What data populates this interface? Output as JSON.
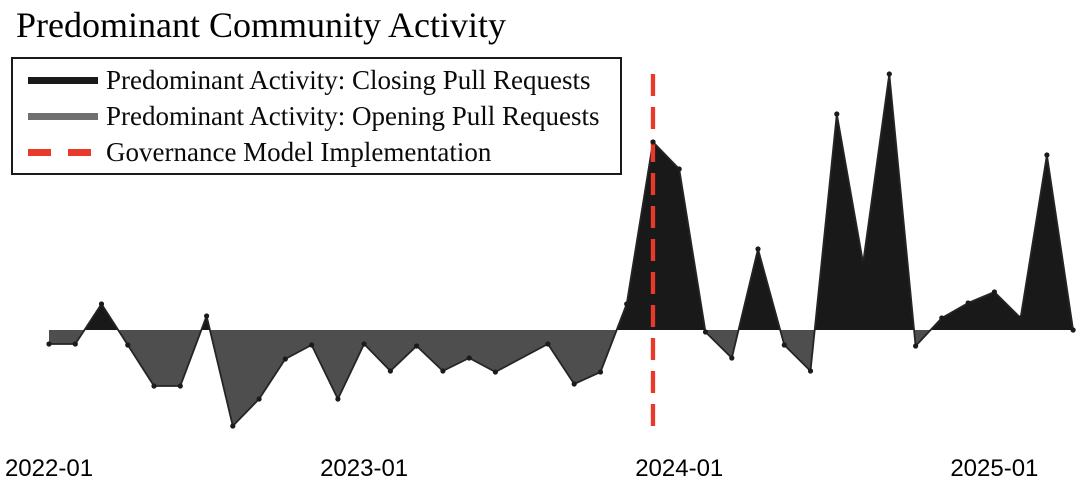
{
  "chart_data": {
    "type": "area",
    "title": "Predominant Community Activity",
    "x_unit": "month",
    "grid": false,
    "legend_position": "upper left",
    "x_range": [
      "2022-01",
      "2025-04"
    ],
    "value_range": [
      -98,
      258
    ],
    "baseline": 0,
    "series_semantics": {
      "positive": "Predominant Activity: Closing Pull Requests (black area above baseline)",
      "negative": "Predominant Activity: Opening Pull Requests (gray area below baseline)"
    },
    "months": [
      "2022-01",
      "2022-02",
      "2022-03",
      "2022-04",
      "2022-05",
      "2022-06",
      "2022-07",
      "2022-08",
      "2022-09",
      "2022-10",
      "2022-11",
      "2022-12",
      "2023-01",
      "2023-02",
      "2023-03",
      "2023-04",
      "2023-05",
      "2023-06",
      "2023-07",
      "2023-08",
      "2023-09",
      "2023-10",
      "2023-11",
      "2023-12",
      "2024-01",
      "2024-02",
      "2024-03",
      "2024-04",
      "2024-05",
      "2024-06",
      "2024-07",
      "2024-08",
      "2024-09",
      "2024-10",
      "2024-11",
      "2024-12",
      "2025-01",
      "2025-02",
      "2025-03",
      "2025-04"
    ],
    "values": [
      -14,
      -14,
      26,
      -15,
      -56,
      -56,
      14,
      -96,
      -69,
      -29,
      -15,
      -69,
      -14,
      -41,
      -16,
      -41,
      -28,
      -42,
      null,
      -14,
      -54,
      -42,
      26,
      188,
      161,
      -2,
      -28,
      81,
      -15,
      -41,
      216,
      67,
      256,
      -16,
      12,
      27,
      38,
      12,
      175,
      0
    ],
    "governance_line_month": "2023-12",
    "x_tick_labels": [
      "2022-01",
      "2023-01",
      "2024-01",
      "2025-01"
    ],
    "colors": {
      "closing": "#191919",
      "opening": "#4e4e4e",
      "legend_opening": "#707070",
      "governance": "#e8392b",
      "line": "#252525",
      "dot": "#1b1b1b"
    }
  },
  "legend": {
    "items": [
      {
        "label": "Predominant Activity: Closing Pull Requests",
        "swatch": "solid-black-line"
      },
      {
        "label": "Predominant Activity: Opening Pull Requests",
        "swatch": "solid-gray-line"
      },
      {
        "label": "Governance Model Implementation",
        "swatch": "red-dashed-line"
      }
    ]
  }
}
